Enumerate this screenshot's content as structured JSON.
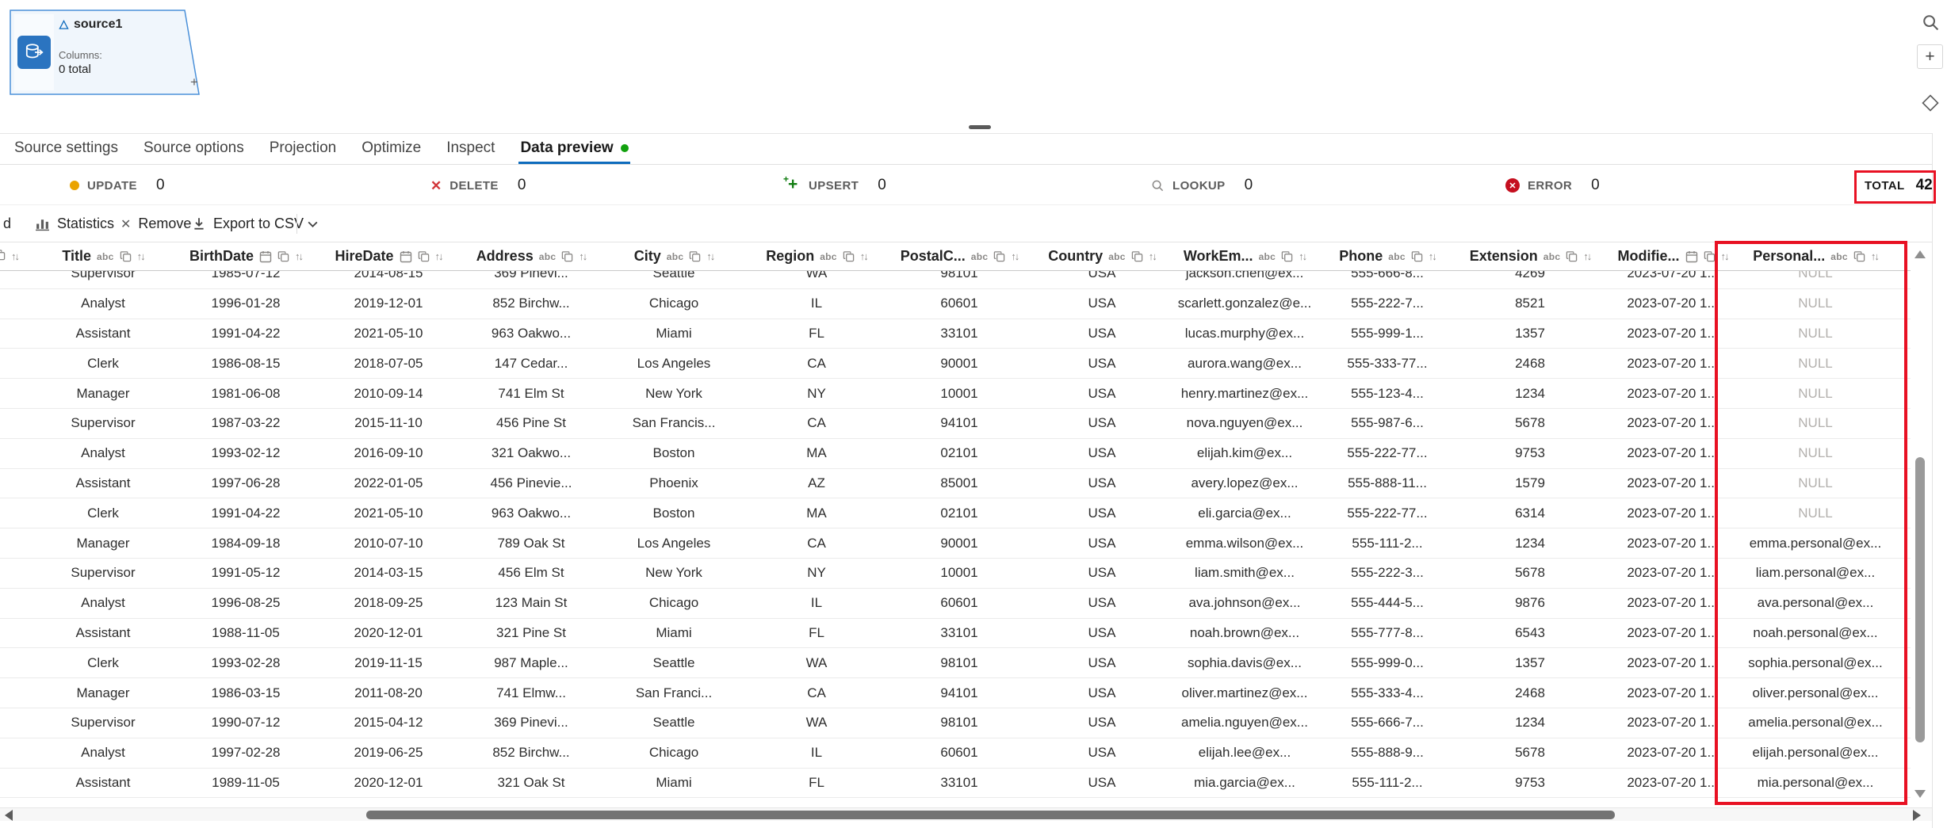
{
  "canvas": {
    "node": {
      "name": "source1",
      "columns_label": "Columns:",
      "columns_count": "0 total",
      "add_port": "+"
    }
  },
  "tabs": {
    "items": [
      {
        "label": "Source settings",
        "active": false,
        "badge_dot": false
      },
      {
        "label": "Source options",
        "active": false,
        "badge_dot": false
      },
      {
        "label": "Projection",
        "active": false,
        "badge_dot": false
      },
      {
        "label": "Optimize",
        "active": false,
        "badge_dot": false
      },
      {
        "label": "Inspect",
        "active": false,
        "badge_dot": false
      },
      {
        "label": "Data preview",
        "active": true,
        "badge_dot": true
      }
    ]
  },
  "status": {
    "update": {
      "label": "UPDATE",
      "count": "0"
    },
    "delete": {
      "label": "DELETE",
      "count": "0"
    },
    "upsert": {
      "label": "UPSERT",
      "count": "0"
    },
    "lookup": {
      "label": "LOOKUP",
      "count": "0"
    },
    "error": {
      "label": "ERROR",
      "count": "0"
    },
    "total": {
      "label": "TOTAL",
      "count": "42"
    }
  },
  "toolbar": {
    "clipped_text": "d",
    "statistics_label": "Statistics",
    "remove_label": "Remove",
    "export_label": "Export to CSV"
  },
  "table": {
    "columns": [
      {
        "name": "Title",
        "type": "string"
      },
      {
        "name": "BirthDate",
        "type": "date"
      },
      {
        "name": "HireDate",
        "type": "date"
      },
      {
        "name": "Address",
        "type": "string"
      },
      {
        "name": "City",
        "type": "string"
      },
      {
        "name": "Region",
        "type": "string"
      },
      {
        "name": "PostalC...",
        "type": "string"
      },
      {
        "name": "Country",
        "type": "string"
      },
      {
        "name": "WorkEm...",
        "type": "string"
      },
      {
        "name": "Phone",
        "type": "string"
      },
      {
        "name": "Extension",
        "type": "string"
      },
      {
        "name": "Modifie...",
        "type": "date"
      },
      {
        "name": "Personal...",
        "type": "string"
      }
    ],
    "rows": [
      [
        "Supervisor",
        "1985-07-12",
        "2014-08-15",
        "369 Pinevi...",
        "Seattle",
        "WA",
        "98101",
        "USA",
        "jackson.chen@ex...",
        "555-666-8...",
        "4269",
        "2023-07-20 1...",
        "NULL"
      ],
      [
        "Analyst",
        "1996-01-28",
        "2019-12-01",
        "852 Birchw...",
        "Chicago",
        "IL",
        "60601",
        "USA",
        "scarlett.gonzalez@e...",
        "555-222-7...",
        "8521",
        "2023-07-20 1...",
        "NULL"
      ],
      [
        "Assistant",
        "1991-04-22",
        "2021-05-10",
        "963 Oakwo...",
        "Miami",
        "FL",
        "33101",
        "USA",
        "lucas.murphy@ex...",
        "555-999-1...",
        "1357",
        "2023-07-20 1...",
        "NULL"
      ],
      [
        "Clerk",
        "1986-08-15",
        "2018-07-05",
        "147 Cedar...",
        "Los Angeles",
        "CA",
        "90001",
        "USA",
        "aurora.wang@ex...",
        "555-333-77...",
        "2468",
        "2023-07-20 1...",
        "NULL"
      ],
      [
        "Manager",
        "1981-06-08",
        "2010-09-14",
        "741 Elm St",
        "New York",
        "NY",
        "10001",
        "USA",
        "henry.martinez@ex...",
        "555-123-4...",
        "1234",
        "2023-07-20 1...",
        "NULL"
      ],
      [
        "Supervisor",
        "1987-03-22",
        "2015-11-10",
        "456 Pine St",
        "San Francis...",
        "CA",
        "94101",
        "USA",
        "nova.nguyen@ex...",
        "555-987-6...",
        "5678",
        "2023-07-20 1...",
        "NULL"
      ],
      [
        "Analyst",
        "1993-02-12",
        "2016-09-10",
        "321 Oakwo...",
        "Boston",
        "MA",
        "02101",
        "USA",
        "elijah.kim@ex...",
        "555-222-77...",
        "9753",
        "2023-07-20 1...",
        "NULL"
      ],
      [
        "Assistant",
        "1997-06-28",
        "2022-01-05",
        "456 Pinevie...",
        "Phoenix",
        "AZ",
        "85001",
        "USA",
        "avery.lopez@ex...",
        "555-888-11...",
        "1579",
        "2023-07-20 1...",
        "NULL"
      ],
      [
        "Clerk",
        "1991-04-22",
        "2021-05-10",
        "963 Oakwo...",
        "Boston",
        "MA",
        "02101",
        "USA",
        "eli.garcia@ex...",
        "555-222-77...",
        "6314",
        "2023-07-20 1...",
        "NULL"
      ],
      [
        "Manager",
        "1984-09-18",
        "2010-07-10",
        "789 Oak St",
        "Los Angeles",
        "CA",
        "90001",
        "USA",
        "emma.wilson@ex...",
        "555-111-2...",
        "1234",
        "2023-07-20 1...",
        "emma.personal@ex..."
      ],
      [
        "Supervisor",
        "1991-05-12",
        "2014-03-15",
        "456 Elm St",
        "New York",
        "NY",
        "10001",
        "USA",
        "liam.smith@ex...",
        "555-222-3...",
        "5678",
        "2023-07-20 1...",
        "liam.personal@ex..."
      ],
      [
        "Analyst",
        "1996-08-25",
        "2018-09-25",
        "123 Main St",
        "Chicago",
        "IL",
        "60601",
        "USA",
        "ava.johnson@ex...",
        "555-444-5...",
        "9876",
        "2023-07-20 1...",
        "ava.personal@ex..."
      ],
      [
        "Assistant",
        "1988-11-05",
        "2020-12-01",
        "321 Pine St",
        "Miami",
        "FL",
        "33101",
        "USA",
        "noah.brown@ex...",
        "555-777-8...",
        "6543",
        "2023-07-20 1...",
        "noah.personal@ex..."
      ],
      [
        "Clerk",
        "1993-02-28",
        "2019-11-15",
        "987 Maple...",
        "Seattle",
        "WA",
        "98101",
        "USA",
        "sophia.davis@ex...",
        "555-999-0...",
        "1357",
        "2023-07-20 1...",
        "sophia.personal@ex..."
      ],
      [
        "Manager",
        "1986-03-15",
        "2011-08-20",
        "741 Elmw...",
        "San Franci...",
        "CA",
        "94101",
        "USA",
        "oliver.martinez@ex...",
        "555-333-4...",
        "2468",
        "2023-07-20 1...",
        "oliver.personal@ex..."
      ],
      [
        "Supervisor",
        "1990-07-12",
        "2015-04-12",
        "369 Pinevi...",
        "Seattle",
        "WA",
        "98101",
        "USA",
        "amelia.nguyen@ex...",
        "555-666-7...",
        "1234",
        "2023-07-20 1...",
        "amelia.personal@ex..."
      ],
      [
        "Analyst",
        "1997-02-28",
        "2019-06-25",
        "852 Birchw...",
        "Chicago",
        "IL",
        "60601",
        "USA",
        "elijah.lee@ex...",
        "555-888-9...",
        "5678",
        "2023-07-20 1...",
        "elijah.personal@ex..."
      ],
      [
        "Assistant",
        "1989-11-05",
        "2020-12-01",
        "321 Oak St",
        "Miami",
        "FL",
        "33101",
        "USA",
        "mia.garcia@ex...",
        "555-111-2...",
        "9753",
        "2023-07-20 1...",
        "mia.personal@ex..."
      ]
    ],
    "null_display": "NULL"
  },
  "annotations": {
    "highlight_color": "#e81123",
    "highlighted_column": "Personal...",
    "highlighted_total": "42"
  }
}
